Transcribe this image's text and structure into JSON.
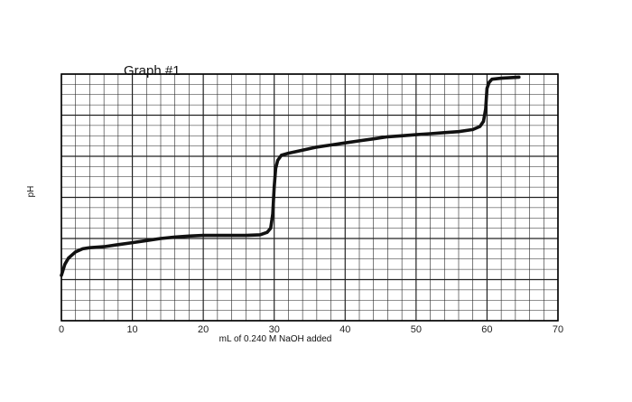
{
  "chart_data": {
    "type": "line",
    "title": "Graph #1",
    "xlabel": "mL of 0.240 M NaOH added",
    "ylabel": "pH",
    "xlim": [
      0,
      70
    ],
    "ylim": [
      0,
      12
    ],
    "x_ticks": [
      0,
      10,
      20,
      30,
      40,
      50,
      60,
      70
    ],
    "x_tick_labels": [
      "0",
      "10",
      "20",
      "30",
      "40",
      "50",
      "60",
      "70"
    ],
    "grid": true,
    "series": [
      {
        "values_x": [
          0,
          0.5,
          1,
          2,
          3,
          4,
          6,
          8,
          10,
          12,
          14,
          16,
          18,
          20,
          22,
          24,
          26,
          28,
          29,
          29.5,
          29.8,
          30,
          30.2,
          30.5,
          31,
          32,
          34,
          36,
          38,
          40,
          42,
          44,
          46,
          48,
          50,
          52,
          54,
          56,
          58,
          59,
          59.5,
          59.8,
          60,
          60.3,
          60.7,
          62,
          64.5
        ],
        "values_y": [
          2.2,
          2.75,
          3.05,
          3.35,
          3.5,
          3.55,
          3.6,
          3.7,
          3.8,
          3.9,
          4.0,
          4.07,
          4.12,
          4.15,
          4.15,
          4.15,
          4.15,
          4.18,
          4.3,
          4.5,
          5.2,
          6.5,
          7.4,
          7.8,
          8.05,
          8.15,
          8.3,
          8.45,
          8.55,
          8.65,
          8.75,
          8.85,
          8.95,
          9.0,
          9.05,
          9.1,
          9.15,
          9.2,
          9.3,
          9.45,
          9.7,
          10.3,
          11.3,
          11.6,
          11.75,
          11.8,
          11.85
        ]
      }
    ]
  }
}
